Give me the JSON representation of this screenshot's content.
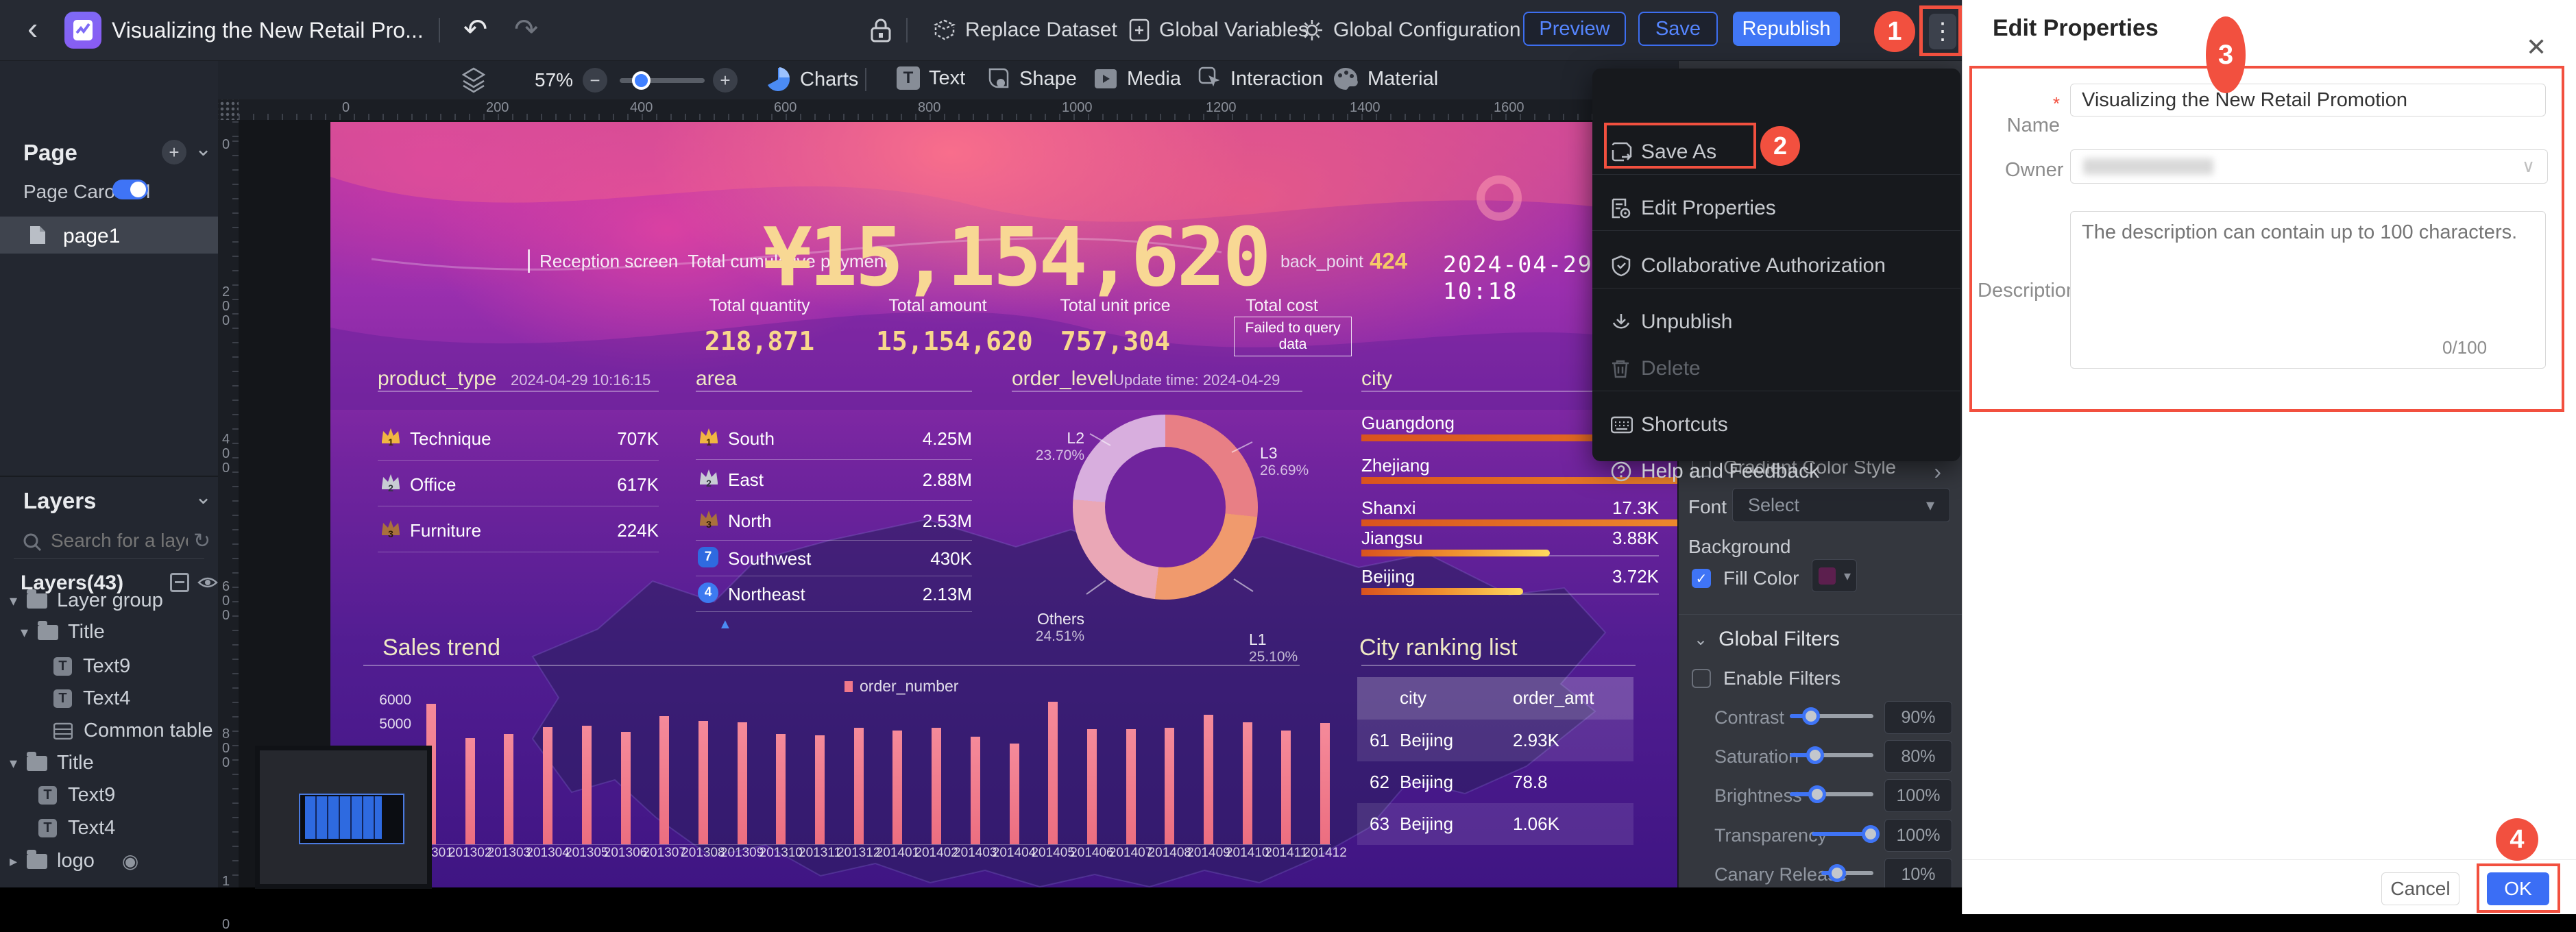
{
  "colors": {
    "accent": "#3f74f6",
    "annotation": "#f2503f",
    "republish_bg": "#4177f6",
    "gold": "#f8d88c",
    "trend_bar": "#ee7384"
  },
  "icons": {
    "back": "‹",
    "undo": "↶",
    "redo": "↷",
    "close": "✕",
    "dots": "⋮",
    "minus": "−",
    "plus": "+",
    "refresh": "↻",
    "caret_down": "▾",
    "caret_right": "▸",
    "chevron_down": "⌄",
    "chevron_right": "›",
    "check": "✓",
    "target": "◉",
    "triangle_up": "▲",
    "star": "*"
  },
  "topbar": {
    "title": "Visualizing the New Retail Pro...",
    "replace_dataset": "Replace Dataset",
    "global_variables": "Global Variables",
    "global_configuration": "Global Configuration",
    "preview": "Preview",
    "save": "Save",
    "republish": "Republish"
  },
  "annotations": {
    "step1": "1",
    "step2": "2",
    "step3": "3",
    "step4": "4"
  },
  "page_panel": {
    "title": "Page",
    "carousel_label": "Page Carousel",
    "page_item": "page1"
  },
  "layers_panel": {
    "title": "Layers",
    "search_placeholder": "Search for a layer",
    "count_label": "Layers(43)",
    "tree": [
      {
        "label": "Layer group"
      },
      {
        "label": "Title"
      },
      {
        "label": "Text9"
      },
      {
        "label": "Text4"
      },
      {
        "label": "Common table"
      },
      {
        "label": "Title"
      },
      {
        "label": "Text9"
      },
      {
        "label": "Text4"
      },
      {
        "label": "logo"
      }
    ]
  },
  "toolbar": {
    "zoom": "57%",
    "charts": "Charts",
    "text": "Text",
    "shape": "Shape",
    "media": "Media",
    "interaction": "Interaction",
    "material": "Material"
  },
  "rulers": {
    "horizontal": [
      "0",
      "200",
      "400",
      "600",
      "800",
      "1000",
      "1200",
      "1400",
      "1600"
    ],
    "vertical": [
      "0",
      "200",
      "400",
      "600",
      "800",
      "1000"
    ]
  },
  "dashboard": {
    "header": {
      "screen_label": "Reception screen",
      "metric_label": "Total cumulative payment",
      "big_number": "¥15,154,620",
      "back_point_label": "back_point",
      "back_point_value": "424",
      "datetime": "2024-04-29 10:18"
    },
    "kpis": [
      {
        "label": "Total quantity",
        "value": "218,871"
      },
      {
        "label": "Total amount",
        "value": "15,154,620"
      },
      {
        "label": "Total unit price",
        "value": "757,304"
      },
      {
        "label": "Total cost",
        "value": "",
        "error": "Failed to query data"
      }
    ],
    "product_type": {
      "title": "product_type",
      "timestamp": "2024-04-29 10:16:15",
      "rows": [
        {
          "rank": "1",
          "label": "Technique",
          "value": "707K"
        },
        {
          "rank": "2",
          "label": "Office",
          "value": "617K"
        },
        {
          "rank": "3",
          "label": "Furniture",
          "value": "224K"
        }
      ]
    },
    "area": {
      "title": "area",
      "rows": [
        {
          "rank": "1",
          "label": "South",
          "value": "4.25M"
        },
        {
          "rank": "2",
          "label": "East",
          "value": "2.88M"
        },
        {
          "rank": "3",
          "label": "North",
          "value": "2.53M"
        },
        {
          "rank": "7",
          "label": "Southwest",
          "value": "430K"
        },
        {
          "rank": "4",
          "label": "Northeast",
          "value": "2.13M"
        }
      ]
    },
    "order_level": {
      "title": "order_level",
      "update_label": "Update time:",
      "update_value": "2024-04-29",
      "chart_data": {
        "type": "pie",
        "slices": [
          {
            "label": "L3",
            "pct": "26.69%",
            "color": "#e87f85"
          },
          {
            "label": "L1",
            "pct": "25.10%",
            "color": "#f09a6d"
          },
          {
            "label": "Others",
            "pct": "24.51%",
            "color": "#eaa7b6"
          },
          {
            "label": "L2",
            "pct": "23.70%",
            "color": "#d8aede"
          }
        ]
      }
    },
    "city": {
      "title": "city",
      "rows": [
        {
          "label": "Guangdong",
          "value": "",
          "width_pct": 100
        },
        {
          "label": "Zhejiang",
          "value": "",
          "width_pct": 62
        },
        {
          "label": "Shanxi",
          "value": "17.3K",
          "width_pct": 55
        },
        {
          "label": "Jiangsu",
          "value": "3.88K",
          "width_pct": 14
        },
        {
          "label": "Beijing",
          "value": "3.72K",
          "width_pct": 12
        }
      ]
    },
    "sales_trend": {
      "title": "Sales trend",
      "legend": "order_number",
      "y_ticks": [
        "6000",
        "5000"
      ],
      "chart_data": {
        "type": "bar",
        "ylim": [
          0,
          6000
        ],
        "x": [
          "201301",
          "201302",
          "201303",
          "201304",
          "201305",
          "201306",
          "201307",
          "201308",
          "201309",
          "201310",
          "201311",
          "201312",
          "201401",
          "201402",
          "201403",
          "201404",
          "201405",
          "201406",
          "201407",
          "201408",
          "201409",
          "201410",
          "201411",
          "201412"
        ],
        "values": [
          5800,
          4400,
          4550,
          4850,
          4900,
          4650,
          5300,
          5100,
          5050,
          4550,
          4500,
          4800,
          4700,
          4800,
          4450,
          4150,
          5900,
          4750,
          4750,
          4800,
          5350,
          5050,
          4700,
          5000
        ]
      }
    },
    "city_ranking": {
      "title": "City ranking list",
      "columns": [
        "city",
        "order_amt"
      ],
      "rows": [
        {
          "idx": "61",
          "city": "Beijing",
          "order_amt": "2.93K"
        },
        {
          "idx": "62",
          "city": "Beijing",
          "order_amt": "78.8"
        },
        {
          "idx": "63",
          "city": "Beijing",
          "order_amt": "1.06K"
        }
      ]
    }
  },
  "context_menu": {
    "items": [
      {
        "label": "Save As"
      },
      {
        "label": "Edit Properties"
      },
      {
        "label": "Collaborative Authorization"
      },
      {
        "label": "Unpublish"
      },
      {
        "label": "Delete"
      },
      {
        "label": "Shortcuts"
      },
      {
        "label": "Help and Feedback"
      }
    ]
  },
  "config_panel": {
    "gradient_color_style": "Gradient Color Style",
    "font_label": "Font",
    "font_value": "Select",
    "background_label": "Background",
    "fill_color": "Fill Color",
    "global_filters": "Global Filters",
    "enable_filters": "Enable Filters",
    "sliders": [
      {
        "label": "Contrast",
        "value": "90%",
        "fill_pct": 25
      },
      {
        "label": "Saturation",
        "value": "80%",
        "fill_pct": 30
      },
      {
        "label": "Brightness",
        "value": "100%",
        "fill_pct": 33
      },
      {
        "label": "Transparency",
        "value": "100%",
        "fill_pct": 95
      },
      {
        "label": "Canary Release",
        "value": "10%",
        "fill_pct": 30
      }
    ]
  },
  "dialog": {
    "title": "Edit Properties",
    "name_label": "Name",
    "name_value": "Visualizing the New Retail Promotion",
    "owner_label": "Owner",
    "description_label": "Description",
    "description_placeholder": "The description can contain up to 100 characters.",
    "char_counter": "0/100",
    "cancel": "Cancel",
    "ok": "OK"
  }
}
